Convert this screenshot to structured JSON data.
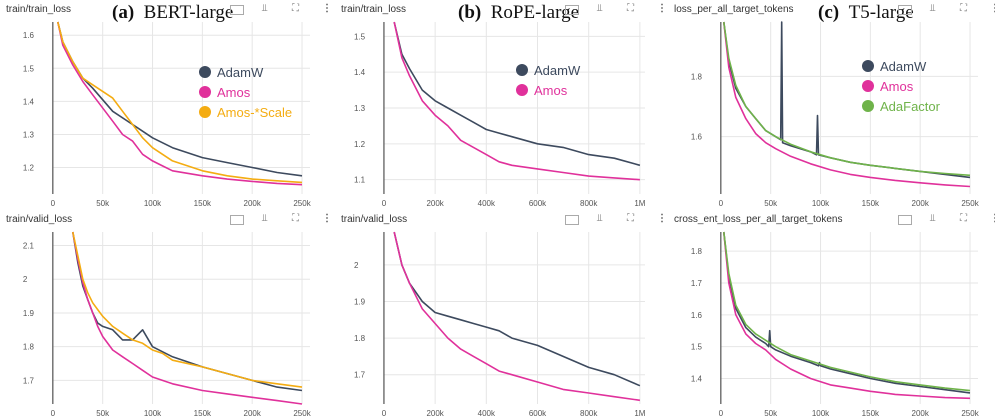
{
  "colors": {
    "AdamW": "#3d4a5e",
    "Amos": "#e0319b",
    "Amos-*Scale": "#f4ac12",
    "AdaFactor": "#6fb34a",
    "grid": "#e6e6e6",
    "axis": "#333333"
  },
  "toolbar_icons": [
    "expand-icon",
    "pin-icon",
    "fullscreen-icon",
    "more-vert-icon"
  ],
  "headings": [
    {
      "letter": "(a)",
      "name": "BERT-large"
    },
    {
      "letter": "(b)",
      "name": "RoPE-large"
    },
    {
      "letter": "(c)",
      "name": "T5-large"
    }
  ],
  "chart_data": [
    {
      "type": "line",
      "title": "train/train_loss",
      "xlim": [
        -45000,
        258000
      ],
      "ylim": [
        1.12,
        1.64
      ],
      "xticks": [
        0,
        50000,
        100000,
        150000,
        200000,
        250000
      ],
      "xtick_labels": [
        "0",
        "50k",
        "100k",
        "150k",
        "200k",
        "250k"
      ],
      "yticks": [
        1.2,
        1.3,
        1.4,
        1.5,
        1.6
      ],
      "ytick_labels": [
        "1.2",
        "1.3",
        "1.4",
        "1.5",
        "1.6"
      ],
      "legend": [
        "AdamW",
        "Amos",
        "Amos-*Scale"
      ],
      "series": [
        {
          "name": "AdamW",
          "x": [
            5000,
            10000,
            20000,
            30000,
            40000,
            60000,
            80000,
            100000,
            120000,
            150000,
            175000,
            200000,
            225000,
            250000
          ],
          "y": [
            1.64,
            1.58,
            1.52,
            1.47,
            1.44,
            1.37,
            1.33,
            1.29,
            1.26,
            1.23,
            1.215,
            1.2,
            1.185,
            1.175
          ]
        },
        {
          "name": "Amos",
          "x": [
            5000,
            10000,
            20000,
            30000,
            40000,
            60000,
            70000,
            80000,
            90000,
            100000,
            110000,
            120000,
            150000,
            175000,
            200000,
            225000,
            250000
          ],
          "y": [
            1.64,
            1.57,
            1.51,
            1.46,
            1.42,
            1.34,
            1.3,
            1.28,
            1.24,
            1.22,
            1.205,
            1.19,
            1.175,
            1.165,
            1.158,
            1.152,
            1.148
          ]
        },
        {
          "name": "Amos-*Scale",
          "x": [
            5000,
            10000,
            20000,
            30000,
            40000,
            60000,
            70000,
            80000,
            90000,
            100000,
            120000,
            150000,
            175000,
            200000,
            225000,
            250000
          ],
          "y": [
            1.64,
            1.58,
            1.52,
            1.47,
            1.45,
            1.41,
            1.37,
            1.33,
            1.29,
            1.26,
            1.22,
            1.19,
            1.175,
            1.165,
            1.16,
            1.155
          ]
        }
      ]
    },
    {
      "type": "line",
      "title": "train/train_loss",
      "xlim": [
        -160000,
        1020000
      ],
      "ylim": [
        1.06,
        1.54
      ],
      "xticks": [
        0,
        200000,
        400000,
        600000,
        800000,
        1000000
      ],
      "xtick_labels": [
        "0",
        "200k",
        "400k",
        "600k",
        "800k",
        "1M"
      ],
      "yticks": [
        1.1,
        1.2,
        1.3,
        1.4,
        1.5
      ],
      "ytick_labels": [
        "1.1",
        "1.2",
        "1.3",
        "1.4",
        "1.5"
      ],
      "legend": [
        "AdamW",
        "Amos"
      ],
      "series": [
        {
          "name": "AdamW",
          "x": [
            40000,
            70000,
            100000,
            150000,
            200000,
            250000,
            300000,
            350000,
            400000,
            450000,
            500000,
            600000,
            700000,
            800000,
            900000,
            1000000
          ],
          "y": [
            1.54,
            1.45,
            1.41,
            1.35,
            1.32,
            1.3,
            1.28,
            1.26,
            1.24,
            1.23,
            1.22,
            1.2,
            1.19,
            1.17,
            1.16,
            1.14
          ]
        },
        {
          "name": "Amos",
          "x": [
            40000,
            70000,
            100000,
            150000,
            200000,
            250000,
            300000,
            350000,
            400000,
            450000,
            500000,
            600000,
            700000,
            800000,
            900000,
            1000000
          ],
          "y": [
            1.54,
            1.44,
            1.39,
            1.32,
            1.28,
            1.25,
            1.21,
            1.19,
            1.17,
            1.15,
            1.14,
            1.13,
            1.12,
            1.11,
            1.105,
            1.1
          ]
        }
      ]
    },
    {
      "type": "line",
      "title": "loss_per_all_target_tokens",
      "xlim": [
        -45000,
        258000
      ],
      "ylim": [
        1.41,
        1.98
      ],
      "xticks": [
        0,
        50000,
        100000,
        150000,
        200000,
        250000
      ],
      "xtick_labels": [
        "0",
        "50k",
        "100k",
        "150k",
        "200k",
        "250k"
      ],
      "yticks": [
        1.6,
        1.8
      ],
      "ytick_labels": [
        "1.6",
        "1.8"
      ],
      "legend": [
        "AdamW",
        "Amos",
        "AdaFactor"
      ],
      "series": [
        {
          "name": "AdamW",
          "x": [
            3000,
            8000,
            15000,
            25000,
            35000,
            45000,
            55000,
            60000,
            61000,
            62000,
            70000,
            90000,
            96000,
            97000,
            98000,
            110000,
            130000,
            150000,
            175000,
            200000,
            225000,
            250000
          ],
          "y": [
            1.98,
            1.85,
            1.76,
            1.7,
            1.66,
            1.62,
            1.6,
            1.59,
            1.98,
            1.58,
            1.57,
            1.55,
            1.54,
            1.67,
            1.54,
            1.53,
            1.515,
            1.505,
            1.495,
            1.485,
            1.475,
            1.465
          ]
        },
        {
          "name": "Amos",
          "x": [
            3000,
            8000,
            15000,
            25000,
            35000,
            45000,
            55000,
            70000,
            90000,
            110000,
            130000,
            150000,
            175000,
            200000,
            225000,
            250000
          ],
          "y": [
            1.98,
            1.83,
            1.73,
            1.66,
            1.61,
            1.58,
            1.56,
            1.535,
            1.51,
            1.49,
            1.475,
            1.465,
            1.455,
            1.447,
            1.44,
            1.435
          ]
        },
        {
          "name": "AdaFactor",
          "x": [
            3000,
            8000,
            15000,
            25000,
            35000,
            45000,
            55000,
            70000,
            90000,
            110000,
            130000,
            150000,
            175000,
            200000,
            225000,
            250000
          ],
          "y": [
            1.98,
            1.86,
            1.77,
            1.7,
            1.66,
            1.62,
            1.6,
            1.575,
            1.55,
            1.53,
            1.515,
            1.505,
            1.495,
            1.485,
            1.478,
            1.472
          ]
        }
      ]
    },
    {
      "type": "line",
      "title": "train/valid_loss",
      "xlim": [
        -45000,
        258000
      ],
      "ylim": [
        1.63,
        2.14
      ],
      "xticks": [
        0,
        50000,
        100000,
        150000,
        200000,
        250000
      ],
      "xtick_labels": [
        "0",
        "50k",
        "100k",
        "150k",
        "200k",
        "250k"
      ],
      "yticks": [
        1.7,
        1.8,
        1.9,
        2.0,
        2.1
      ],
      "ytick_labels": [
        "1.7",
        "1.8",
        "1.9",
        "2",
        "2.1"
      ],
      "series": [
        {
          "name": "AdamW",
          "x": [
            20000,
            25000,
            30000,
            35000,
            40000,
            45000,
            50000,
            60000,
            70000,
            80000,
            90000,
            100000,
            120000,
            150000,
            175000,
            200000,
            225000,
            250000
          ],
          "y": [
            2.14,
            2.05,
            1.98,
            1.94,
            1.9,
            1.87,
            1.86,
            1.85,
            1.82,
            1.82,
            1.85,
            1.8,
            1.77,
            1.74,
            1.72,
            1.7,
            1.68,
            1.67
          ]
        },
        {
          "name": "Amos",
          "x": [
            20000,
            25000,
            30000,
            35000,
            40000,
            45000,
            50000,
            60000,
            70000,
            80000,
            90000,
            100000,
            110000,
            120000,
            150000,
            175000,
            200000,
            225000,
            250000
          ],
          "y": [
            2.14,
            2.06,
            1.99,
            1.94,
            1.9,
            1.86,
            1.83,
            1.79,
            1.77,
            1.75,
            1.73,
            1.71,
            1.7,
            1.69,
            1.67,
            1.66,
            1.65,
            1.64,
            1.63
          ]
        },
        {
          "name": "Amos-*Scale",
          "x": [
            20000,
            25000,
            30000,
            35000,
            40000,
            45000,
            50000,
            60000,
            70000,
            80000,
            90000,
            100000,
            110000,
            120000,
            150000,
            175000,
            200000,
            225000,
            250000
          ],
          "y": [
            2.14,
            2.07,
            2.0,
            1.96,
            1.93,
            1.91,
            1.89,
            1.86,
            1.84,
            1.82,
            1.81,
            1.79,
            1.78,
            1.76,
            1.74,
            1.72,
            1.7,
            1.69,
            1.68
          ]
        }
      ]
    },
    {
      "type": "line",
      "title": "train/valid_loss",
      "xlim": [
        -160000,
        1020000
      ],
      "ylim": [
        1.62,
        2.09
      ],
      "xticks": [
        0,
        200000,
        400000,
        600000,
        800000,
        1000000
      ],
      "xtick_labels": [
        "0",
        "200k",
        "400k",
        "600k",
        "800k",
        "1M"
      ],
      "yticks": [
        1.7,
        1.8,
        1.9,
        2.0
      ],
      "ytick_labels": [
        "1.7",
        "1.8",
        "1.9",
        "2"
      ],
      "series": [
        {
          "name": "AdamW",
          "x": [
            40000,
            70000,
            100000,
            150000,
            200000,
            250000,
            300000,
            350000,
            400000,
            450000,
            500000,
            600000,
            700000,
            800000,
            900000,
            1000000
          ],
          "y": [
            2.09,
            2.0,
            1.95,
            1.9,
            1.87,
            1.86,
            1.85,
            1.84,
            1.83,
            1.82,
            1.8,
            1.78,
            1.75,
            1.72,
            1.7,
            1.67
          ]
        },
        {
          "name": "Amos",
          "x": [
            40000,
            70000,
            100000,
            150000,
            200000,
            250000,
            300000,
            350000,
            400000,
            450000,
            500000,
            600000,
            700000,
            800000,
            900000,
            1000000
          ],
          "y": [
            2.09,
            2.0,
            1.95,
            1.88,
            1.84,
            1.8,
            1.77,
            1.75,
            1.73,
            1.71,
            1.7,
            1.68,
            1.66,
            1.65,
            1.64,
            1.63
          ]
        }
      ]
    },
    {
      "type": "line",
      "title": "cross_ent_loss_per_all_target_tokens",
      "xlim": [
        -45000,
        258000
      ],
      "ylim": [
        1.32,
        1.86
      ],
      "xticks": [
        0,
        50000,
        100000,
        150000,
        200000,
        250000
      ],
      "xtick_labels": [
        "0",
        "50k",
        "100k",
        "150k",
        "200k",
        "250k"
      ],
      "yticks": [
        1.4,
        1.5,
        1.6,
        1.7,
        1.8
      ],
      "ytick_labels": [
        "1.4",
        "1.5",
        "1.6",
        "1.7",
        "1.8"
      ],
      "series": [
        {
          "name": "AdamW",
          "x": [
            3000,
            8000,
            15000,
            25000,
            35000,
            45000,
            48000,
            49000,
            50000,
            55000,
            70000,
            90000,
            98000,
            99000,
            100000,
            110000,
            130000,
            150000,
            175000,
            200000,
            225000,
            250000
          ],
          "y": [
            1.86,
            1.72,
            1.62,
            1.56,
            1.53,
            1.51,
            1.5,
            1.55,
            1.5,
            1.49,
            1.47,
            1.45,
            1.44,
            1.45,
            1.44,
            1.43,
            1.415,
            1.4,
            1.385,
            1.375,
            1.365,
            1.355
          ]
        },
        {
          "name": "Amos",
          "x": [
            3000,
            8000,
            15000,
            25000,
            35000,
            45000,
            55000,
            70000,
            90000,
            110000,
            130000,
            150000,
            175000,
            200000,
            225000,
            250000
          ],
          "y": [
            1.86,
            1.7,
            1.6,
            1.54,
            1.51,
            1.49,
            1.46,
            1.43,
            1.4,
            1.38,
            1.37,
            1.36,
            1.35,
            1.345,
            1.34,
            1.338
          ]
        },
        {
          "name": "AdaFactor",
          "x": [
            3000,
            8000,
            15000,
            25000,
            35000,
            45000,
            55000,
            70000,
            90000,
            110000,
            130000,
            150000,
            175000,
            200000,
            225000,
            250000
          ],
          "y": [
            1.86,
            1.73,
            1.63,
            1.57,
            1.54,
            1.52,
            1.5,
            1.475,
            1.455,
            1.435,
            1.42,
            1.405,
            1.39,
            1.38,
            1.37,
            1.362
          ]
        }
      ]
    }
  ]
}
